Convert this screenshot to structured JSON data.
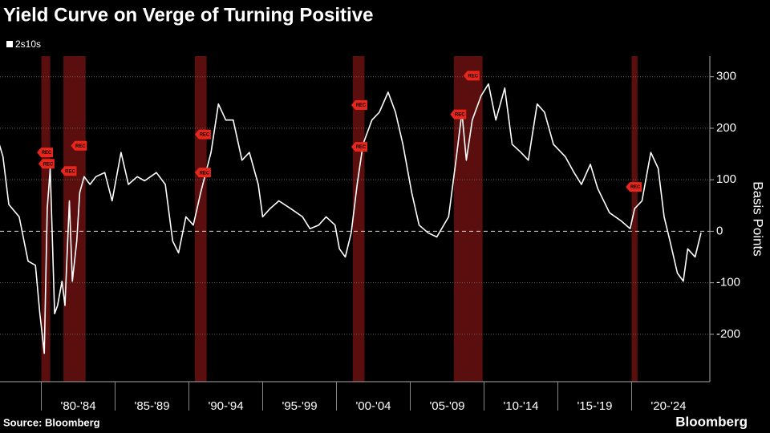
{
  "chart_data": {
    "type": "line",
    "title": "Yield Curve on Verge of Turning Positive",
    "y_label": "Basis Points",
    "source": "Source: Bloomberg",
    "brand": "Bloomberg",
    "xlim": [
      1977.2,
      2025.3
    ],
    "ylim": [
      -292,
      340
    ],
    "yticks": [
      -200,
      -100,
      0,
      100,
      200,
      300
    ],
    "xticks": [
      {
        "value": 1980,
        "label": "'80-'84"
      },
      {
        "value": 1985,
        "label": "'85-'89"
      },
      {
        "value": 1990,
        "label": "'90-'94"
      },
      {
        "value": 1995,
        "label": "'95-'99"
      },
      {
        "value": 2000,
        "label": "'00-'04"
      },
      {
        "value": 2005,
        "label": "'05-'09"
      },
      {
        "value": 2010,
        "label": "'10-'14"
      },
      {
        "value": 2015,
        "label": "'15-'19"
      },
      {
        "value": 2020,
        "label": "'20-'24"
      }
    ],
    "grid": true,
    "recessions": [
      {
        "start": 1980.0,
        "end": 1980.6
      },
      {
        "start": 1981.5,
        "end": 1983.0
      },
      {
        "start": 1990.4,
        "end": 1991.2
      },
      {
        "start": 2001.1,
        "end": 2001.9
      },
      {
        "start": 2007.95,
        "end": 2009.9
      },
      {
        "start": 2020.0,
        "end": 2020.4
      }
    ],
    "recession_color": "#6b1010",
    "annotations": [
      {
        "x": 1980.3,
        "y": 153,
        "label": "REC"
      },
      {
        "x": 1980.4,
        "y": 131,
        "label": "REC"
      },
      {
        "x": 1981.9,
        "y": 117,
        "label": "REC"
      },
      {
        "x": 1982.6,
        "y": 166,
        "label": "REC"
      },
      {
        "x": 1991.0,
        "y": 188,
        "label": "REC"
      },
      {
        "x": 1991.0,
        "y": 114,
        "label": "REC"
      },
      {
        "x": 2001.6,
        "y": 245,
        "label": "REC"
      },
      {
        "x": 2001.6,
        "y": 164,
        "label": "REC"
      },
      {
        "x": 2008.3,
        "y": 227,
        "label": "REC"
      },
      {
        "x": 2009.2,
        "y": 302,
        "label": "REC"
      },
      {
        "x": 2020.2,
        "y": 86,
        "label": "REC"
      }
    ],
    "series": [
      {
        "name": "2s10s",
        "color": "#ffffff",
        "x": [
          1977.15,
          1977.4,
          1977.8,
          1978.5,
          1979.1,
          1979.6,
          1979.9,
          1980.2,
          1980.4,
          1980.6,
          1980.9,
          1981.1,
          1981.4,
          1981.6,
          1981.9,
          1982.1,
          1982.4,
          1982.6,
          1982.9,
          1983.3,
          1983.7,
          1984.3,
          1984.8,
          1985.4,
          1985.9,
          1986.5,
          1987.0,
          1987.8,
          1988.4,
          1988.9,
          1989.3,
          1989.8,
          1990.3,
          1990.8,
          1991.5,
          1992.0,
          1992.5,
          1993.0,
          1993.6,
          1994.1,
          1994.7,
          1995.0,
          1995.5,
          1996.1,
          1996.9,
          1997.7,
          1998.2,
          1998.8,
          1999.3,
          1999.9,
          2000.2,
          2000.6,
          2001.0,
          2001.4,
          2001.8,
          2002.4,
          2002.9,
          2003.5,
          2004.0,
          2004.5,
          2005.1,
          2005.6,
          2006.2,
          2006.8,
          2007.6,
          2008.1,
          2008.5,
          2008.8,
          2009.2,
          2009.8,
          2010.3,
          2010.8,
          2011.4,
          2011.9,
          2012.5,
          2013.0,
          2013.6,
          2014.1,
          2014.7,
          2015.5,
          2016.1,
          2016.6,
          2017.2,
          2017.7,
          2018.5,
          2019.3,
          2019.9,
          2020.2,
          2020.7,
          2021.3,
          2021.8,
          2022.2,
          2022.6,
          2023.1,
          2023.5,
          2023.8,
          2024.3,
          2024.7
        ],
        "values": [
          169,
          145,
          52,
          28,
          -58,
          -66,
          -160,
          -237,
          44,
          122,
          -160,
          -144,
          -97,
          -144,
          59,
          -97,
          -19,
          75,
          106,
          91,
          106,
          114,
          59,
          153,
          91,
          106,
          98,
          114,
          91,
          -19,
          -42,
          28,
          12,
          75,
          153,
          247,
          216,
          216,
          138,
          153,
          91,
          28,
          44,
          59,
          44,
          28,
          5,
          12,
          28,
          12,
          -34,
          -50,
          -3,
          91,
          169,
          216,
          231,
          270,
          231,
          169,
          75,
          12,
          -3,
          -11,
          28,
          138,
          231,
          138,
          216,
          263,
          286,
          216,
          278,
          169,
          153,
          138,
          247,
          231,
          169,
          145,
          114,
          91,
          130,
          83,
          36,
          20,
          5,
          44,
          59,
          153,
          122,
          28,
          -19,
          -81,
          -97,
          -34,
          -50,
          -3
        ]
      }
    ]
  }
}
